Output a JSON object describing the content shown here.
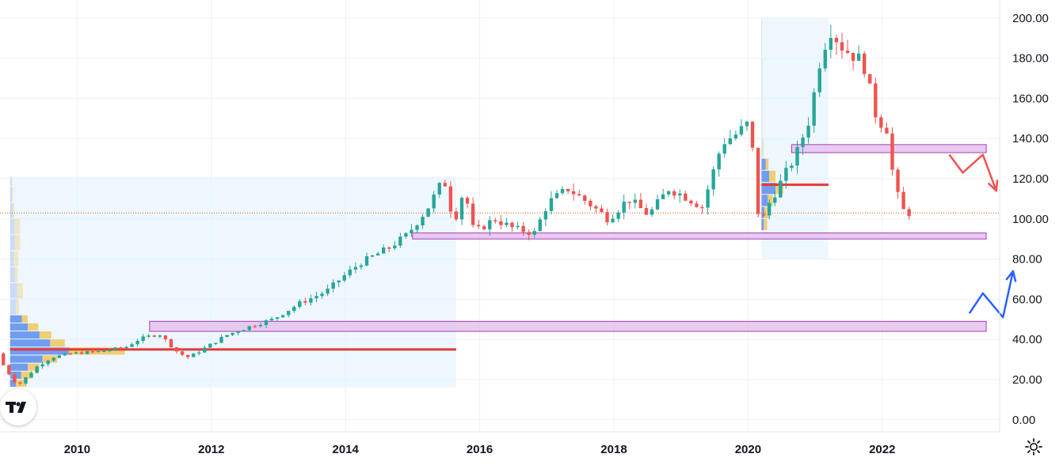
{
  "chart_data": {
    "type": "candlestick",
    "interval": "monthly",
    "y_axis": {
      "ticks": [
        0,
        20,
        40,
        60,
        80,
        100,
        120,
        140,
        160,
        180,
        200
      ],
      "tick_labels": [
        "0.00",
        "20.00",
        "40.00",
        "60.00",
        "80.00",
        "100.00",
        "120.00",
        "140.00",
        "160.00",
        "180.00",
        "200.00"
      ],
      "range": [
        -6,
        209
      ],
      "position": "right"
    },
    "x_axis": {
      "ticks": [
        2010,
        2012,
        2014,
        2016,
        2018,
        2020,
        2022
      ],
      "tick_labels": [
        "2010",
        "2012",
        "2014",
        "2016",
        "2018",
        "2020",
        "2022"
      ],
      "range": [
        2008.85,
        2023.75
      ]
    },
    "grid": true,
    "colors": {
      "up": "#26a69a",
      "down": "#ef5350",
      "zone_fill": "#e7c6ef",
      "zone_border": "#9c27b0",
      "vp_bg": "#e3f2fd",
      "vp_up": "#5b8def",
      "vp_down": "#f0c04a",
      "poc": "#e53935",
      "arrow_up": "#2962ff",
      "arrow_down": "#ef5350",
      "last_price_line": "#e65100"
    },
    "waypoints": [
      [
        2008.9,
        33
      ],
      [
        2009.0,
        26
      ],
      [
        2009.2,
        17
      ],
      [
        2009.5,
        27
      ],
      [
        2009.7,
        31
      ],
      [
        2010.0,
        33
      ],
      [
        2010.4,
        34
      ],
      [
        2010.8,
        36
      ],
      [
        2011.0,
        40
      ],
      [
        2011.3,
        43
      ],
      [
        2011.6,
        33
      ],
      [
        2011.75,
        31
      ],
      [
        2011.95,
        35
      ],
      [
        2012.3,
        42
      ],
      [
        2012.7,
        47
      ],
      [
        2013.0,
        50
      ],
      [
        2013.4,
        58
      ],
      [
        2013.8,
        64
      ],
      [
        2014.0,
        70
      ],
      [
        2014.3,
        78
      ],
      [
        2014.7,
        85
      ],
      [
        2015.0,
        92
      ],
      [
        2015.3,
        105
      ],
      [
        2015.55,
        120
      ],
      [
        2015.7,
        98
      ],
      [
        2015.85,
        115
      ],
      [
        2016.0,
        93
      ],
      [
        2016.3,
        100
      ],
      [
        2016.6,
        95
      ],
      [
        2016.9,
        93
      ],
      [
        2017.1,
        108
      ],
      [
        2017.4,
        115
      ],
      [
        2017.7,
        108
      ],
      [
        2018.0,
        100
      ],
      [
        2018.3,
        110
      ],
      [
        2018.6,
        102
      ],
      [
        2018.9,
        115
      ],
      [
        2019.1,
        112
      ],
      [
        2019.4,
        106
      ],
      [
        2019.7,
        138
      ],
      [
        2019.9,
        142
      ],
      [
        2020.1,
        148
      ],
      [
        2020.2,
        120
      ],
      [
        2020.25,
        95
      ],
      [
        2020.4,
        108
      ],
      [
        2020.6,
        120
      ],
      [
        2020.8,
        132
      ],
      [
        2021.0,
        150
      ],
      [
        2021.15,
        178
      ],
      [
        2021.3,
        195
      ],
      [
        2021.5,
        185
      ],
      [
        2021.8,
        178
      ],
      [
        2022.0,
        150
      ],
      [
        2022.15,
        145
      ],
      [
        2022.25,
        120
      ],
      [
        2022.35,
        107
      ],
      [
        2022.42,
        103
      ]
    ],
    "zones": [
      {
        "x0": 2011.08,
        "x1": 2023.55,
        "y0": 44,
        "y1": 49
      },
      {
        "x0": 2015.0,
        "x1": 2023.55,
        "y0": 90,
        "y1": 93
      },
      {
        "x0": 2020.65,
        "x1": 2023.55,
        "y0": 133,
        "y1": 137
      }
    ],
    "volume_profiles": [
      {
        "x0": 2009.0,
        "x1": 2015.65,
        "y0": 16,
        "y1": 121,
        "poc": 35,
        "bars": [
          {
            "y0": 16,
            "y1": 20,
            "up": 0.1,
            "down": 0.18
          },
          {
            "y0": 20,
            "y1": 24,
            "up": 0.19,
            "down": 0.2
          },
          {
            "y0": 24,
            "y1": 28,
            "up": 0.3,
            "down": 0.2
          },
          {
            "y0": 28,
            "y1": 32,
            "up": 0.55,
            "down": 0.25
          },
          {
            "y0": 32,
            "y1": 36,
            "up": 1.0,
            "down": 0.95
          },
          {
            "y0": 36,
            "y1": 40,
            "up": 0.68,
            "down": 0.25
          },
          {
            "y0": 40,
            "y1": 44,
            "up": 0.5,
            "down": 0.2
          },
          {
            "y0": 44,
            "y1": 48,
            "up": 0.3,
            "down": 0.18
          },
          {
            "y0": 48,
            "y1": 52,
            "up": 0.2,
            "down": 0.1
          },
          {
            "y0": 52,
            "y1": 60,
            "up": 0.1,
            "down": 0.05
          },
          {
            "y0": 60,
            "y1": 68,
            "up": 0.12,
            "down": 0.1
          },
          {
            "y0": 68,
            "y1": 76,
            "up": 0.08,
            "down": 0.05
          },
          {
            "y0": 76,
            "y1": 84,
            "up": 0.06,
            "down": 0.08
          },
          {
            "y0": 84,
            "y1": 92,
            "up": 0.08,
            "down": 0.09
          },
          {
            "y0": 92,
            "y1": 100,
            "up": 0.07,
            "down": 0.1
          },
          {
            "y0": 100,
            "y1": 108,
            "up": 0.04,
            "down": 0.03
          },
          {
            "y0": 108,
            "y1": 116,
            "up": 0.03,
            "down": 0.02
          },
          {
            "y0": 116,
            "y1": 121,
            "up": 0.02,
            "down": 0.02
          }
        ]
      },
      {
        "x0": 2020.2,
        "x1": 2021.2,
        "y0": 80,
        "y1": 200,
        "poc": 117,
        "bars": [
          {
            "y0": 94,
            "y1": 100,
            "up": 0.15,
            "down": 0.25
          },
          {
            "y0": 100,
            "y1": 106,
            "up": 0.2,
            "down": 0.35
          },
          {
            "y0": 106,
            "y1": 112,
            "up": 0.45,
            "down": 0.35
          },
          {
            "y0": 112,
            "y1": 118,
            "up": 1.0,
            "down": 0.55
          },
          {
            "y0": 118,
            "y1": 124,
            "up": 0.55,
            "down": 0.45
          },
          {
            "y0": 124,
            "y1": 130,
            "up": 0.3,
            "down": 0.2
          },
          {
            "y0": 130,
            "y1": 140,
            "up": 0.08,
            "down": 0.08
          },
          {
            "y0": 140,
            "y1": 160,
            "up": 0.04,
            "down": 0.03
          },
          {
            "y0": 160,
            "y1": 180,
            "up": 0.05,
            "down": 0.03
          },
          {
            "y0": 180,
            "y1": 200,
            "up": 0.03,
            "down": 0.02
          }
        ]
      }
    ],
    "last_price": 103,
    "annotations": [
      {
        "type": "arrow",
        "direction": "up",
        "points": [
          [
            2023.3,
            53
          ],
          [
            2023.5,
            63
          ],
          [
            2023.8,
            51
          ],
          [
            2023.95,
            74
          ]
        ]
      },
      {
        "type": "arrow",
        "direction": "down",
        "points": [
          [
            2023.0,
            132
          ],
          [
            2023.2,
            123
          ],
          [
            2023.5,
            132
          ],
          [
            2023.7,
            114
          ]
        ]
      }
    ]
  },
  "logo": {
    "text": "TV"
  },
  "icons": {
    "settings": "settings-gear-icon",
    "logo": "tradingview-logo-icon"
  }
}
